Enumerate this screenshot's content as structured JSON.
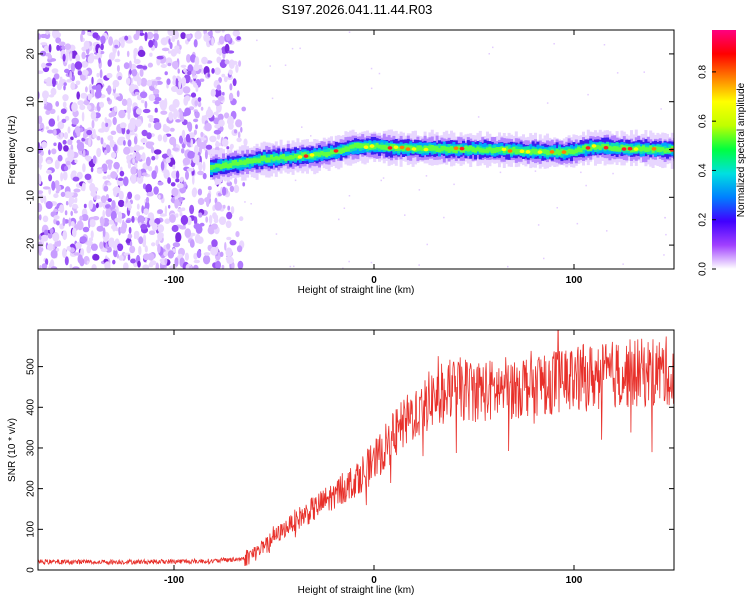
{
  "title": "S197.2026.041.11.44.R03",
  "chart_data": [
    {
      "type": "heatmap",
      "name": "spectrogram",
      "xlabel": "Height of straight line (km)",
      "ylabel": "Frequency (Hz)",
      "xlim": [
        -168,
        150
      ],
      "ylim": [
        -25,
        25
      ],
      "xticks": [
        -100,
        0,
        100
      ],
      "yticks": [
        -20,
        -10,
        0,
        10,
        20
      ],
      "noise_region_x": [
        -168,
        -67
      ],
      "signal_start_x": -82,
      "signal_center_freq": [
        [
          -82,
          -3.8
        ],
        [
          -70,
          -3.0
        ],
        [
          -55,
          -2.0
        ],
        [
          -40,
          -1.5
        ],
        [
          -30,
          -1.2
        ],
        [
          -20,
          -0.5
        ],
        [
          -10,
          0.6
        ],
        [
          0,
          0.7
        ],
        [
          10,
          0.3
        ],
        [
          30,
          0.1
        ],
        [
          60,
          0.0
        ],
        [
          80,
          -0.4
        ],
        [
          95,
          -0.6
        ],
        [
          110,
          0.6
        ],
        [
          130,
          0.1
        ],
        [
          150,
          0.0
        ]
      ],
      "colorbar": {
        "label": "Normalized spectral amplitude",
        "range": [
          0.0,
          0.97
        ],
        "ticks": [
          "0.0",
          "0.2",
          "0.4",
          "0.6",
          "0.8"
        ],
        "colors": [
          "#ffffff",
          "#a040ff",
          "#4000ff",
          "#0080ff",
          "#00e0e0",
          "#00ff40",
          "#c0ff00",
          "#ffff00",
          "#ff8000",
          "#ff0000",
          "#ff0080"
        ]
      }
    },
    {
      "type": "line",
      "name": "snr",
      "xlabel": "Height of straight line (km)",
      "ylabel": "SNR (10 * v/v)",
      "xlim": [
        -168,
        150
      ],
      "ylim": [
        0,
        590
      ],
      "xticks": [
        -100,
        0,
        100
      ],
      "yticks": [
        0,
        100,
        200,
        300,
        400,
        500
      ],
      "color": "#e8302a",
      "trend": [
        [
          -168,
          20
        ],
        [
          -120,
          20
        ],
        [
          -80,
          22
        ],
        [
          -65,
          28
        ],
        [
          -55,
          55
        ],
        [
          -50,
          80
        ],
        [
          -40,
          120
        ],
        [
          -30,
          150
        ],
        [
          -20,
          185
        ],
        [
          -10,
          220
        ],
        [
          0,
          265
        ],
        [
          10,
          330
        ],
        [
          20,
          385
        ],
        [
          30,
          425
        ],
        [
          40,
          445
        ],
        [
          60,
          440
        ],
        [
          80,
          460
        ],
        [
          100,
          470
        ],
        [
          120,
          480
        ],
        [
          150,
          490
        ]
      ]
    }
  ]
}
